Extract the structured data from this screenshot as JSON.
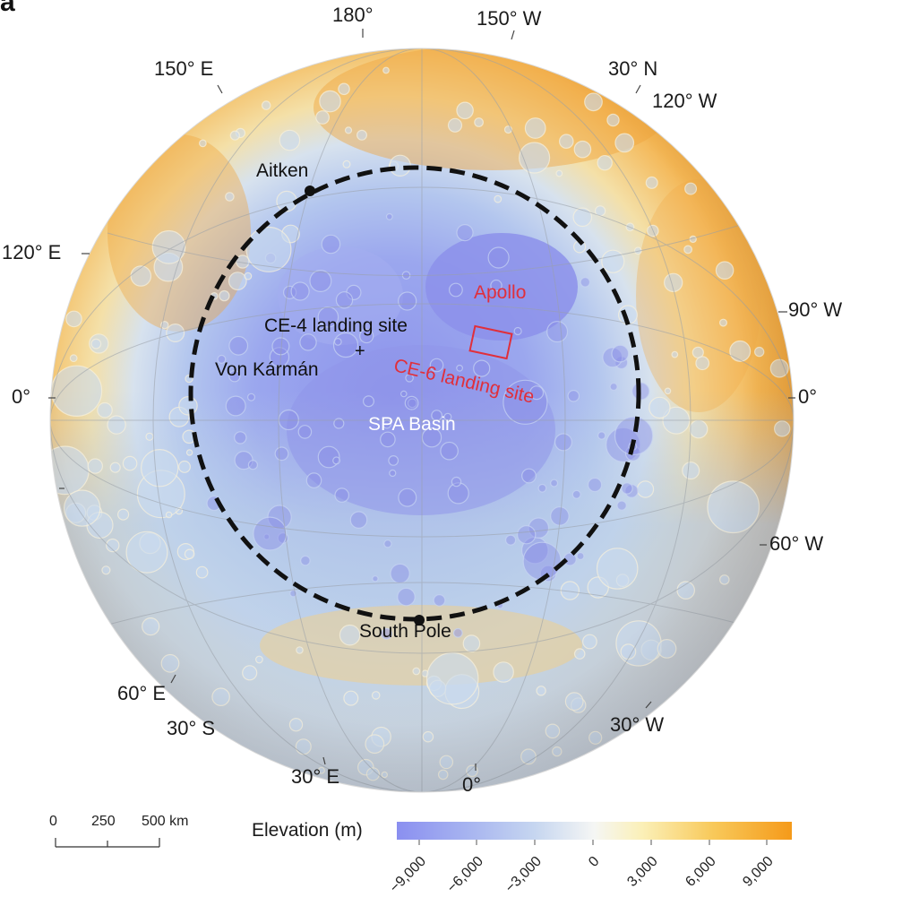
{
  "panel_label": "a",
  "colors": {
    "low": "#8a8ff0",
    "midlow": "#b9cfee",
    "neutral": "#f2f2ec",
    "midhigh": "#f6d488",
    "high": "#f59a1a",
    "landing_site": "#e02f3b",
    "boundary": "#111111"
  },
  "coordinates": {
    "lon_180": "180°",
    "lon_150w": "150° W",
    "lat_30n": "30° N",
    "lon_150e": "150° E",
    "lon_120w": "120° W",
    "lon_120e": "120° E",
    "lon_90w": "90° W",
    "lat_0_left": "0°",
    "lat_0_right": "0°",
    "lon_60w": "60° W",
    "lon_60e": "60° E",
    "lat_30s": "30° S",
    "lon_30w": "30° W",
    "lon_30e": "30° E",
    "lon_0": "0°"
  },
  "features": {
    "aitken": "Aitken",
    "apollo": "Apollo",
    "ce4": "CE-4 landing site",
    "von_karman": "Von Kármán",
    "ce6": "CE-6 landing site",
    "spa_basin": "SPA Basin",
    "south_pole": "South Pole",
    "cross_mark": "+"
  },
  "scale_bar": {
    "ticks": [
      "0",
      "250",
      "500 km"
    ]
  },
  "legend": {
    "title": "Elevation (m)",
    "ticks": [
      "−9,000",
      "−6,000",
      "−3,000",
      "0",
      "3,000",
      "6,000",
      "9,000"
    ]
  }
}
